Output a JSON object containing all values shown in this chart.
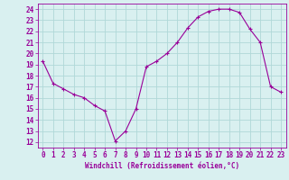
{
  "hours": [
    0,
    1,
    2,
    3,
    4,
    5,
    6,
    7,
    8,
    9,
    10,
    11,
    12,
    13,
    14,
    15,
    16,
    17,
    18,
    19,
    20,
    21,
    22,
    23
  ],
  "values": [
    19.3,
    17.3,
    16.8,
    16.3,
    16.0,
    15.3,
    14.8,
    12.1,
    13.0,
    15.0,
    18.8,
    19.3,
    20.0,
    21.0,
    22.3,
    23.3,
    23.8,
    24.0,
    24.0,
    23.7,
    22.2,
    21.0,
    17.0,
    16.5
  ],
  "line_color": "#990099",
  "marker": "+",
  "marker_size": 3,
  "bg_color": "#d9f0f0",
  "grid_color": "#b0d8d8",
  "axis_color": "#990099",
  "ylabel_values": [
    12,
    13,
    14,
    15,
    16,
    17,
    18,
    19,
    20,
    21,
    22,
    23,
    24
  ],
  "ylim": [
    11.5,
    24.5
  ],
  "xlim": [
    -0.5,
    23.5
  ],
  "xlabel": "Windchill (Refroidissement éolien,°C)",
  "xlabel_fontsize": 5.5,
  "tick_fontsize": 5.5
}
